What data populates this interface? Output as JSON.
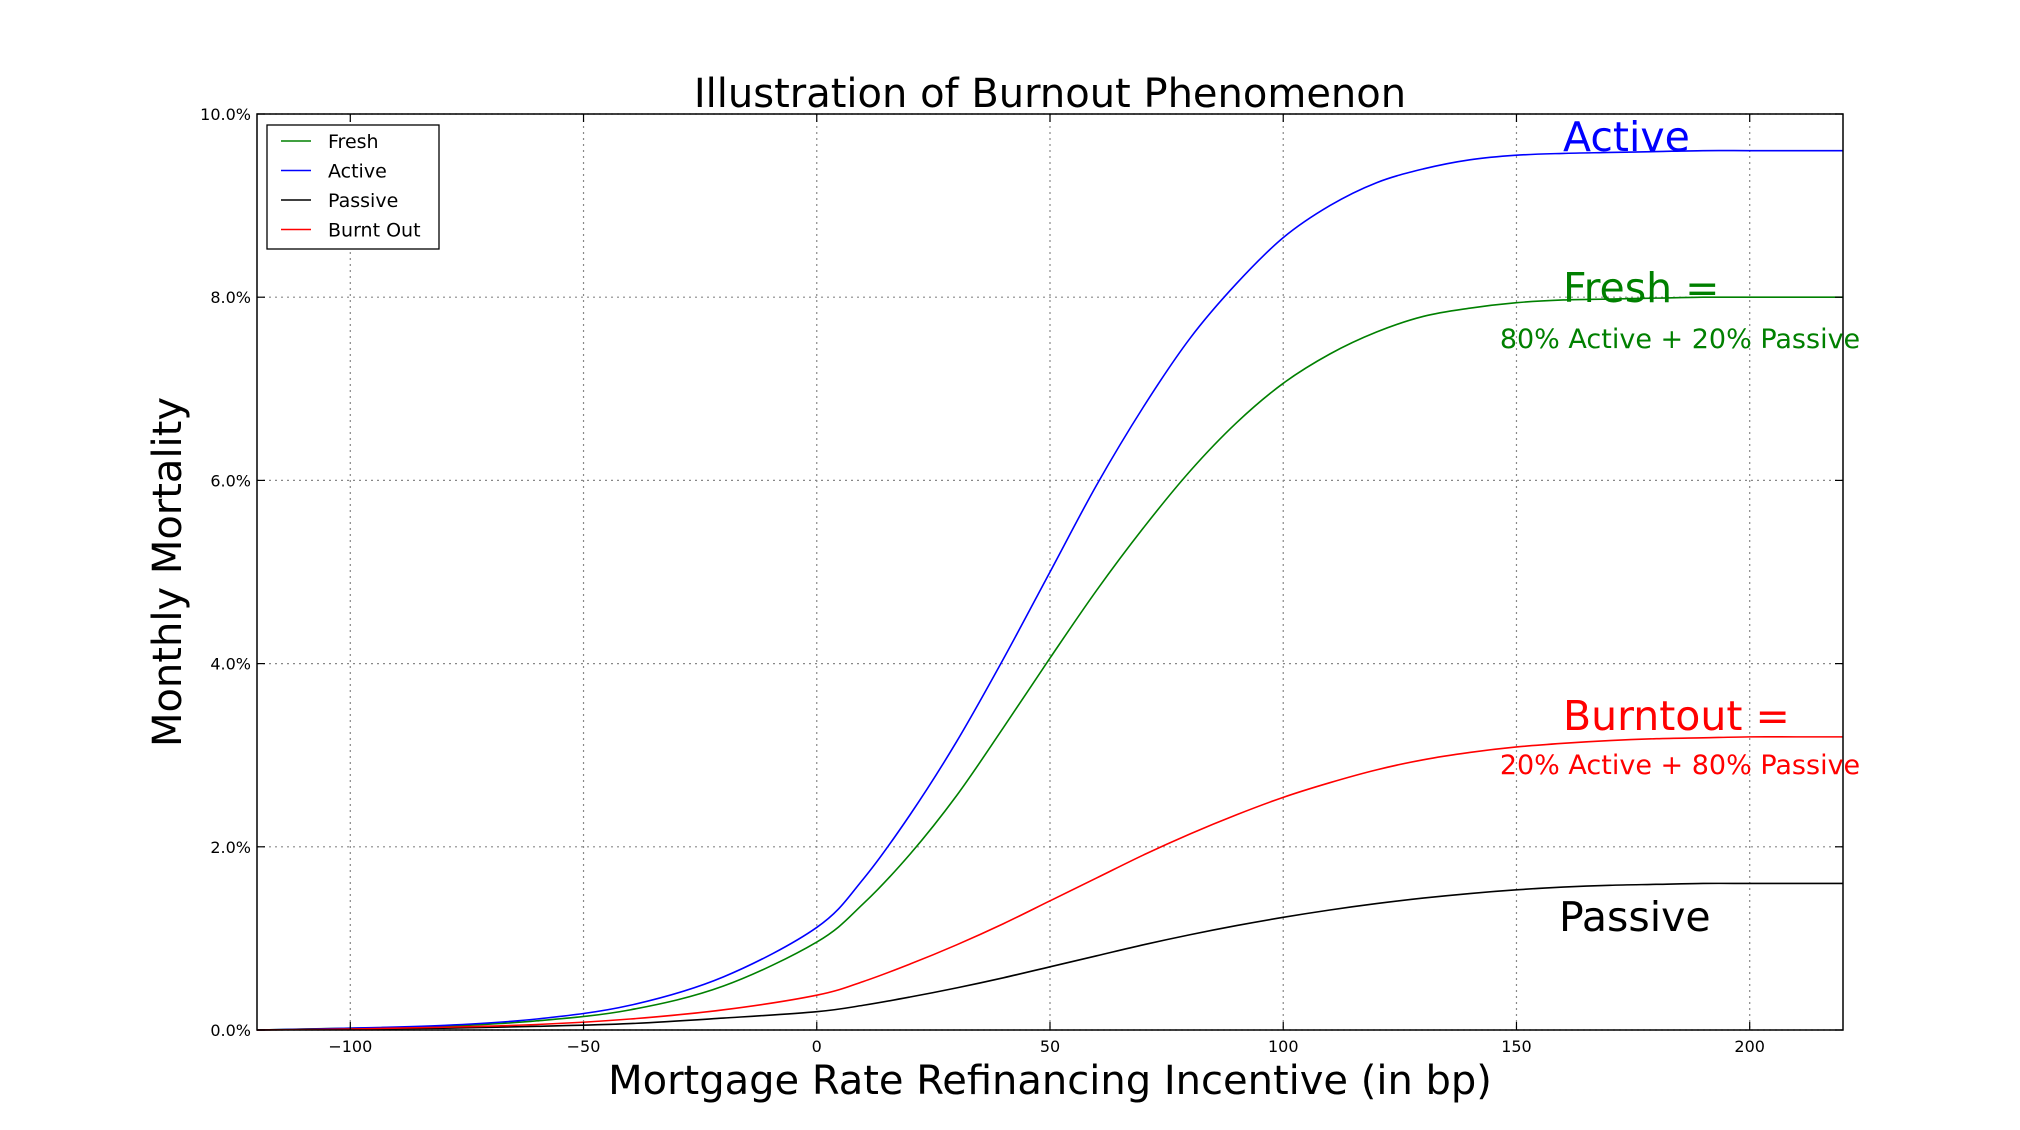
{
  "chart_data": {
    "type": "line",
    "title": "Illustration of Burnout Phenomenon",
    "xlabel": "Mortgage Rate Refinancing Incentive (in bp)",
    "ylabel": "Monthly Mortality",
    "xlim": [
      -120,
      220
    ],
    "ylim": [
      0,
      10
    ],
    "x_ticks": [
      -100,
      -50,
      0,
      50,
      100,
      150,
      200
    ],
    "x_tick_labels": [
      "−100",
      "−50",
      "0",
      "50",
      "100",
      "150",
      "200"
    ],
    "y_ticks": [
      0,
      2,
      4,
      6,
      8,
      10
    ],
    "y_tick_labels": [
      "0.0%",
      "2.0%",
      "4.0%",
      "6.0%",
      "8.0%",
      "10.0%"
    ],
    "grid": true,
    "legend_position": "top-left",
    "x": [
      -120,
      -100,
      -80,
      -60,
      -40,
      -20,
      0,
      10,
      20,
      30,
      40,
      50,
      60,
      70,
      80,
      90,
      100,
      110,
      120,
      130,
      140,
      150,
      160,
      170,
      180,
      190,
      200,
      210,
      220
    ],
    "series": [
      {
        "name": "Fresh",
        "color": "#008000",
        "values": [
          0.0,
          0.02,
          0.04,
          0.1,
          0.22,
          0.48,
          0.96,
          1.38,
          1.92,
          2.56,
          3.3,
          4.06,
          4.8,
          5.48,
          6.1,
          6.63,
          7.06,
          7.38,
          7.62,
          7.79,
          7.88,
          7.94,
          7.97,
          7.98,
          7.99,
          8.0,
          8.0,
          8.0,
          8.0
        ]
      },
      {
        "name": "Active",
        "color": "#0000ff",
        "values": [
          0.0,
          0.02,
          0.05,
          0.12,
          0.27,
          0.58,
          1.12,
          1.65,
          2.35,
          3.15,
          4.05,
          5.0,
          5.95,
          6.8,
          7.55,
          8.15,
          8.65,
          9.0,
          9.25,
          9.4,
          9.5,
          9.55,
          9.57,
          9.58,
          9.59,
          9.6,
          9.6,
          9.6,
          9.6
        ]
      },
      {
        "name": "Passive",
        "color": "#000000",
        "values": [
          0.0,
          0.01,
          0.02,
          0.04,
          0.07,
          0.13,
          0.2,
          0.27,
          0.36,
          0.46,
          0.57,
          0.69,
          0.81,
          0.93,
          1.04,
          1.14,
          1.23,
          1.31,
          1.38,
          1.44,
          1.49,
          1.53,
          1.56,
          1.58,
          1.59,
          1.6,
          1.6,
          1.6,
          1.6
        ]
      },
      {
        "name": "Burnt Out",
        "color": "#ff0000",
        "values": [
          0.0,
          0.01,
          0.03,
          0.06,
          0.12,
          0.22,
          0.38,
          0.53,
          0.72,
          0.93,
          1.16,
          1.41,
          1.66,
          1.91,
          2.14,
          2.35,
          2.54,
          2.7,
          2.84,
          2.95,
          3.03,
          3.09,
          3.13,
          3.16,
          3.18,
          3.19,
          3.2,
          3.2,
          3.2
        ]
      }
    ],
    "legend_entries": [
      "Fresh",
      "Active",
      "Passive",
      "Burnt Out"
    ],
    "annotations": [
      {
        "id": "active",
        "lines": [
          "Active"
        ],
        "color": "#0000ff",
        "x": 160,
        "y": 9.65
      },
      {
        "id": "fresh",
        "lines": [
          "Fresh =",
          "80% Active + 20% Passive"
        ],
        "color": "#008000",
        "x": 160,
        "y": 8.0
      },
      {
        "id": "burntout",
        "lines": [
          "Burntout =",
          "20% Active + 80% Passive"
        ],
        "color": "#ff0000",
        "x": 160,
        "y": 3.35
      },
      {
        "id": "passive",
        "lines": [
          "Passive"
        ],
        "color": "#000000",
        "x": 160,
        "y": 1.1
      }
    ]
  }
}
